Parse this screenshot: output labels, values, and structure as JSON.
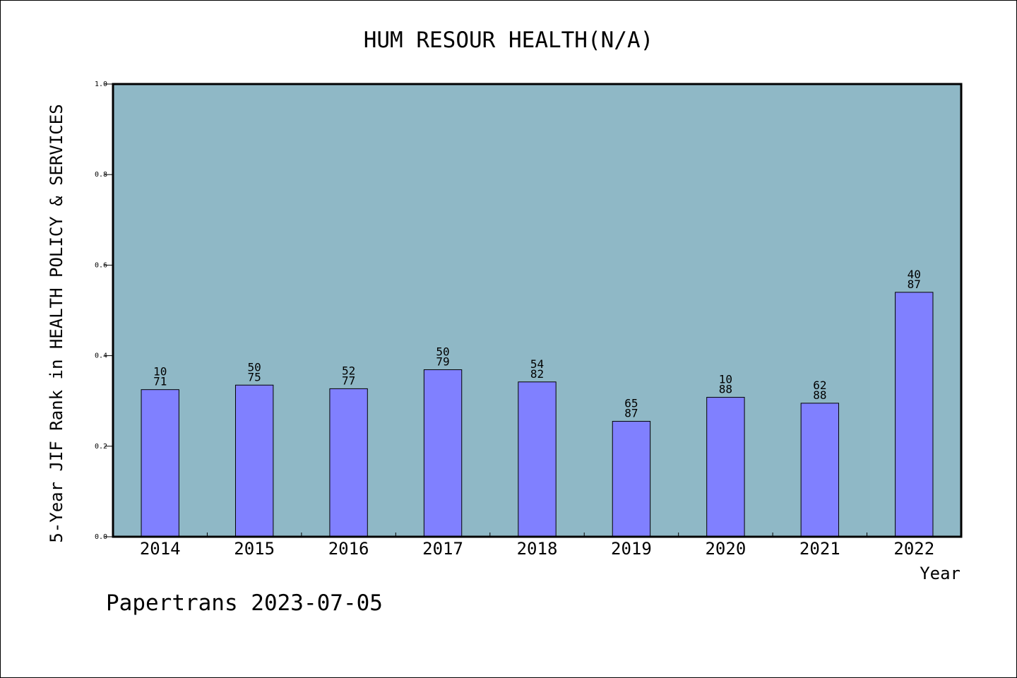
{
  "chart_data": {
    "type": "bar",
    "title": "HUM RESOUR HEALTH(N/A)",
    "xlabel": "Year",
    "ylabel": "5-Year JIF Rank in HEALTH POLICY & SERVICES",
    "categories": [
      "2014",
      "2015",
      "2016",
      "2017",
      "2018",
      "2019",
      "2020",
      "2021",
      "2022"
    ],
    "values": [
      0.325,
      0.335,
      0.327,
      0.369,
      0.342,
      0.255,
      0.308,
      0.295,
      0.54
    ],
    "bar_labels": [
      [
        "10",
        "71"
      ],
      [
        "50",
        "75"
      ],
      [
        "52",
        "77"
      ],
      [
        "50",
        "79"
      ],
      [
        "54",
        "82"
      ],
      [
        "65",
        "87"
      ],
      [
        "10",
        "88"
      ],
      [
        "62",
        "88"
      ],
      [
        "40",
        "87"
      ]
    ],
    "ylim": [
      0,
      1.0
    ],
    "yticks": [
      "0.0",
      "0.2",
      "0.4",
      "0.6",
      "0.8",
      "1.0"
    ],
    "grid": false,
    "colors": {
      "plot_background": "#8fb8c6",
      "bar_fill": "#8080ff",
      "bar_edge": "#000000"
    }
  },
  "footer": "Papertrans 2023-07-05"
}
